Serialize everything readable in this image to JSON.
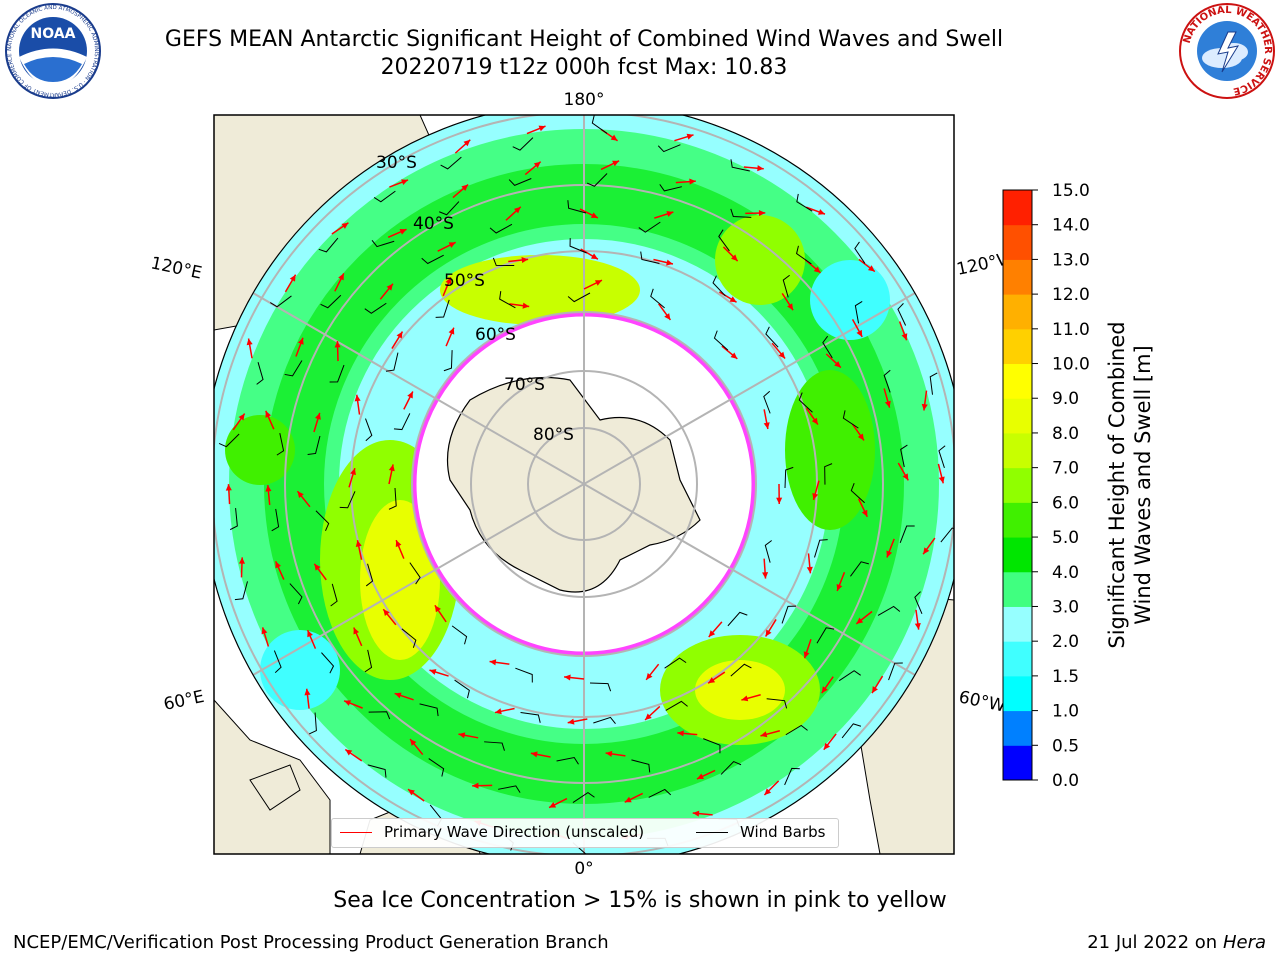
{
  "header": {
    "title_line1": "GEFS MEAN Antarctic Significant Height of Combined Wind Waves and Swell",
    "title_line2": "20220719 t12z 000h fcst   Max: 10.83"
  },
  "logos": {
    "noaa_text": "NOAA",
    "noaa_ring_text": "NATIONAL OCEANIC AND ATMOSPHERIC ADMINISTRATION · U.S. DEPARTMENT OF COMMERCE",
    "nws_ring_text": "NATIONAL WEATHER SERVICE"
  },
  "map": {
    "projection": "south-polar-stereographic",
    "longitude_labels": {
      "top": "180°",
      "bottom": "0°",
      "upper_left": "120°E",
      "upper_right": "120°W",
      "lower_left": "60°E",
      "lower_right": "60°W"
    },
    "latitude_labels": [
      "30°S",
      "40°S",
      "50°S",
      "60°S",
      "70°S",
      "80°S"
    ],
    "colors": {
      "land": "#efebd8",
      "ocean_low": "#96ffff",
      "sea_ice_edge": "#ff44ff",
      "wave_arrow": "#ff0000",
      "wind_barb": "#000000",
      "grid": "#b4b4b4"
    }
  },
  "legend": {
    "primary_wave_label": "Primary Wave Direction (unscaled)",
    "wind_barbs_label": "Wind Barbs",
    "primary_wave_color": "#ff0000",
    "wind_barbs_color": "#000000"
  },
  "colorbar": {
    "title_line1": "Significant Height of Combined",
    "title_line2": "Wind Waves and Swell [m]",
    "tick_labels": [
      "0.0",
      "0.5",
      "1.0",
      "1.5",
      "2.0",
      "3.0",
      "4.0",
      "5.0",
      "6.0",
      "7.0",
      "8.0",
      "9.0",
      "10.0",
      "11.0",
      "12.0",
      "13.0",
      "14.0",
      "15.0"
    ],
    "colors": [
      "#0000ff",
      "#0080ff",
      "#00ffff",
      "#40ffff",
      "#96ffff",
      "#40ff80",
      "#00e600",
      "#40f000",
      "#90ff00",
      "#c8ff00",
      "#e8ff00",
      "#ffff00",
      "#ffd000",
      "#ffb000",
      "#ff8000",
      "#ff5000",
      "#ff2000"
    ]
  },
  "caption": "Sea Ice Concentration > 15% is shown in pink to yellow",
  "footer": {
    "left": "NCEP/EMC/Verification Post Processing Product Generation Branch",
    "right_prefix": "21 Jul 2022 on ",
    "right_machine": "Hera"
  }
}
